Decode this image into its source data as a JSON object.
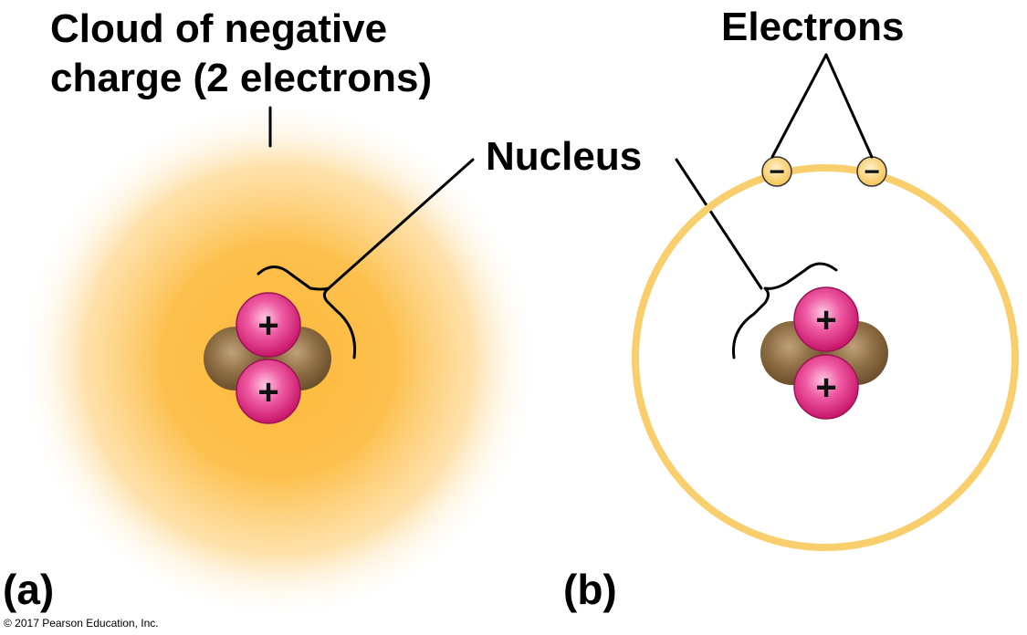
{
  "labels": {
    "cloud_line1": "Cloud of negative",
    "cloud_line2": "charge (2 electrons)",
    "nucleus": "Nucleus",
    "electrons": "Electrons",
    "panel_a": "(a)",
    "panel_b": "(b)",
    "copyright": "© 2017 Pearson Education, Inc."
  },
  "symbols": {
    "proton": "+",
    "electron": "−"
  },
  "colors": {
    "cloud": "#fdb93a",
    "orbit": "#f9cf6e",
    "electron_fill": "#fbd27a",
    "proton": "#e6297f",
    "neutron": "#8a6a3f"
  }
}
